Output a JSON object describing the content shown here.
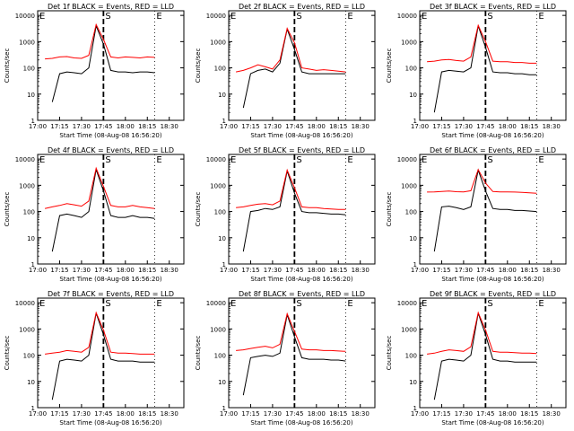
{
  "figure": {
    "ylabel": "Counts/sec",
    "xlabel": "Start Time (08-Aug-08 16:56:20)",
    "x_ticks": [
      "17:00",
      "17:15",
      "17:30",
      "17:45",
      "18:00",
      "18:15",
      "18:30"
    ],
    "y_ticks": [
      "1",
      "10",
      "100",
      "1000",
      "10000"
    ],
    "markers": [
      {
        "label": "E",
        "time": "17:00"
      },
      {
        "label": "S",
        "time": "17:45"
      },
      {
        "label": "E",
        "time": "18:20"
      }
    ]
  },
  "colors": {
    "events": "#000000",
    "lld": "#ff0000"
  },
  "chart_data": [
    {
      "type": "line",
      "title": "Det 1f BLACK = Events, RED = LLD",
      "xlabel": "Start Time (08-Aug-08 16:56:20)",
      "ylabel": "Counts/sec",
      "ylim": [
        1,
        15000
      ],
      "yscale": "log",
      "x": [
        "17:00",
        "17:05",
        "17:10",
        "17:15",
        "17:20",
        "17:25",
        "17:30",
        "17:35",
        "17:40",
        "17:45",
        "17:50",
        "17:55",
        "18:00",
        "18:05",
        "18:10",
        "18:15",
        "18:20",
        "18:25"
      ],
      "series": [
        {
          "name": "Events",
          "values": [
            null,
            null,
            5,
            60,
            70,
            65,
            60,
            100,
            4000,
            800,
            80,
            70,
            70,
            65,
            70,
            70,
            65,
            null
          ]
        },
        {
          "name": "LLD",
          "values": [
            null,
            220,
            230,
            260,
            270,
            240,
            230,
            300,
            4500,
            1200,
            260,
            240,
            260,
            250,
            240,
            260,
            250,
            null
          ]
        }
      ]
    },
    {
      "type": "line",
      "title": "Det 2f BLACK = Events, RED = LLD",
      "xlabel": "Start Time (08-Aug-08 16:56:20)",
      "ylabel": "Counts/sec",
      "ylim": [
        1,
        15000
      ],
      "yscale": "log",
      "x": [
        "17:00",
        "17:05",
        "17:10",
        "17:15",
        "17:20",
        "17:25",
        "17:30",
        "17:35",
        "17:40",
        "17:45",
        "17:50",
        "17:55",
        "18:00",
        "18:05",
        "18:10",
        "18:15",
        "18:20",
        "18:25"
      ],
      "series": [
        {
          "name": "Events",
          "values": [
            null,
            null,
            3,
            60,
            80,
            90,
            70,
            150,
            3000,
            500,
            70,
            60,
            60,
            60,
            60,
            60,
            60,
            null
          ]
        },
        {
          "name": "LLD",
          "values": [
            null,
            70,
            80,
            100,
            130,
            110,
            90,
            200,
            3200,
            900,
            100,
            90,
            80,
            85,
            80,
            75,
            70,
            null
          ]
        }
      ]
    },
    {
      "type": "line",
      "title": "Det 3f BLACK = Events, RED = LLD",
      "xlabel": "Start Time (08-Aug-08 16:56:20)",
      "ylabel": "Counts/sec",
      "ylim": [
        1,
        15000
      ],
      "yscale": "log",
      "x": [
        "17:00",
        "17:05",
        "17:10",
        "17:15",
        "17:20",
        "17:25",
        "17:30",
        "17:35",
        "17:40",
        "17:45",
        "17:50",
        "17:55",
        "18:00",
        "18:05",
        "18:10",
        "18:15",
        "18:20",
        "18:25"
      ],
      "series": [
        {
          "name": "Events",
          "values": [
            null,
            null,
            2,
            70,
            80,
            75,
            70,
            100,
            4000,
            600,
            70,
            65,
            65,
            60,
            60,
            55,
            55,
            null
          ]
        },
        {
          "name": "LLD",
          "values": [
            null,
            170,
            180,
            200,
            210,
            190,
            180,
            260,
            4200,
            1000,
            180,
            170,
            170,
            160,
            160,
            150,
            150,
            null
          ]
        }
      ]
    },
    {
      "type": "line",
      "title": "Det 4f BLACK = Events, RED = LLD",
      "xlabel": "Start Time (08-Aug-08 16:56:20)",
      "ylabel": "Counts/sec",
      "ylim": [
        1,
        15000
      ],
      "yscale": "log",
      "x": [
        "17:00",
        "17:05",
        "17:10",
        "17:15",
        "17:20",
        "17:25",
        "17:30",
        "17:35",
        "17:40",
        "17:45",
        "17:50",
        "17:55",
        "18:00",
        "18:05",
        "18:10",
        "18:15",
        "18:20",
        "18:25"
      ],
      "series": [
        {
          "name": "Events",
          "values": [
            null,
            null,
            3,
            70,
            80,
            70,
            60,
            100,
            4000,
            600,
            70,
            60,
            60,
            70,
            60,
            60,
            55,
            null
          ]
        },
        {
          "name": "LLD",
          "values": [
            null,
            130,
            150,
            170,
            200,
            180,
            160,
            250,
            4500,
            900,
            170,
            150,
            150,
            170,
            150,
            140,
            130,
            null
          ]
        }
      ]
    },
    {
      "type": "line",
      "title": "Det 5f BLACK = Events, RED = LLD",
      "xlabel": "Start Time (08-Aug-08 16:56:20)",
      "ylabel": "Counts/sec",
      "ylim": [
        1,
        15000
      ],
      "yscale": "log",
      "x": [
        "17:00",
        "17:05",
        "17:10",
        "17:15",
        "17:20",
        "17:25",
        "17:30",
        "17:35",
        "17:40",
        "17:45",
        "17:50",
        "17:55",
        "18:00",
        "18:05",
        "18:10",
        "18:15",
        "18:20",
        "18:25"
      ],
      "series": [
        {
          "name": "Events",
          "values": [
            null,
            null,
            3,
            100,
            110,
            130,
            120,
            150,
            3500,
            500,
            100,
            90,
            90,
            85,
            80,
            80,
            75,
            null
          ]
        },
        {
          "name": "LLD",
          "values": [
            null,
            140,
            150,
            170,
            190,
            200,
            180,
            250,
            3800,
            800,
            150,
            140,
            140,
            130,
            125,
            120,
            120,
            null
          ]
        }
      ]
    },
    {
      "type": "line",
      "title": "Det 6f BLACK = Events, RED = LLD",
      "xlabel": "Start Time (08-Aug-08 16:56:20)",
      "ylabel": "Counts/sec",
      "ylim": [
        1,
        15000
      ],
      "yscale": "log",
      "x": [
        "17:00",
        "17:05",
        "17:10",
        "17:15",
        "17:20",
        "17:25",
        "17:30",
        "17:35",
        "17:40",
        "17:45",
        "17:50",
        "17:55",
        "18:00",
        "18:05",
        "18:10",
        "18:15",
        "18:20",
        "18:25"
      ],
      "series": [
        {
          "name": "Events",
          "values": [
            null,
            null,
            3,
            150,
            160,
            140,
            120,
            150,
            3800,
            600,
            130,
            120,
            120,
            110,
            110,
            105,
            100,
            null
          ]
        },
        {
          "name": "LLD",
          "values": [
            null,
            550,
            560,
            580,
            600,
            570,
            560,
            620,
            4000,
            1200,
            580,
            560,
            560,
            550,
            540,
            520,
            500,
            null
          ]
        }
      ]
    },
    {
      "type": "line",
      "title": "Det 7f BLACK = Events, RED = LLD",
      "xlabel": "Start Time (08-Aug-08 16:56:20)",
      "ylabel": "Counts/sec",
      "ylim": [
        1,
        15000
      ],
      "yscale": "log",
      "x": [
        "17:00",
        "17:05",
        "17:10",
        "17:15",
        "17:20",
        "17:25",
        "17:30",
        "17:35",
        "17:40",
        "17:45",
        "17:50",
        "17:55",
        "18:00",
        "18:05",
        "18:10",
        "18:15",
        "18:20",
        "18:25"
      ],
      "series": [
        {
          "name": "Events",
          "values": [
            null,
            null,
            2,
            60,
            70,
            65,
            60,
            100,
            4000,
            600,
            70,
            60,
            60,
            60,
            55,
            55,
            55,
            null
          ]
        },
        {
          "name": "LLD",
          "values": [
            null,
            110,
            120,
            130,
            150,
            140,
            130,
            200,
            4200,
            900,
            130,
            120,
            120,
            115,
            110,
            110,
            110,
            null
          ]
        }
      ]
    },
    {
      "type": "line",
      "title": "Det 8f BLACK = Events, RED = LLD",
      "xlabel": "Start Time (08-Aug-08 16:56:20)",
      "ylabel": "Counts/sec",
      "ylim": [
        1,
        15000
      ],
      "yscale": "log",
      "x": [
        "17:00",
        "17:05",
        "17:10",
        "17:15",
        "17:20",
        "17:25",
        "17:30",
        "17:35",
        "17:40",
        "17:45",
        "17:50",
        "17:55",
        "18:00",
        "18:05",
        "18:10",
        "18:15",
        "18:20",
        "18:25"
      ],
      "series": [
        {
          "name": "Events",
          "values": [
            null,
            null,
            3,
            80,
            90,
            100,
            90,
            120,
            3500,
            500,
            80,
            70,
            70,
            70,
            65,
            65,
            60,
            null
          ]
        },
        {
          "name": "LLD",
          "values": [
            null,
            150,
            160,
            180,
            200,
            220,
            190,
            260,
            3800,
            800,
            170,
            160,
            160,
            150,
            150,
            145,
            140,
            null
          ]
        }
      ]
    },
    {
      "type": "line",
      "title": "Det 9f BLACK = Events, RED = LLD",
      "xlabel": "Start Time (08-Aug-08 16:56:20)",
      "ylabel": "Counts/sec",
      "ylim": [
        1,
        15000
      ],
      "yscale": "log",
      "x": [
        "17:00",
        "17:05",
        "17:10",
        "17:15",
        "17:20",
        "17:25",
        "17:30",
        "17:35",
        "17:40",
        "17:45",
        "17:50",
        "17:55",
        "18:00",
        "18:05",
        "18:10",
        "18:15",
        "18:20",
        "18:25"
      ],
      "series": [
        {
          "name": "Events",
          "values": [
            null,
            null,
            2,
            60,
            70,
            65,
            60,
            100,
            4000,
            600,
            70,
            60,
            60,
            55,
            55,
            55,
            55,
            null
          ]
        },
        {
          "name": "LLD",
          "values": [
            null,
            110,
            120,
            140,
            160,
            150,
            140,
            210,
            4200,
            900,
            140,
            130,
            130,
            125,
            120,
            120,
            115,
            null
          ]
        }
      ]
    }
  ]
}
